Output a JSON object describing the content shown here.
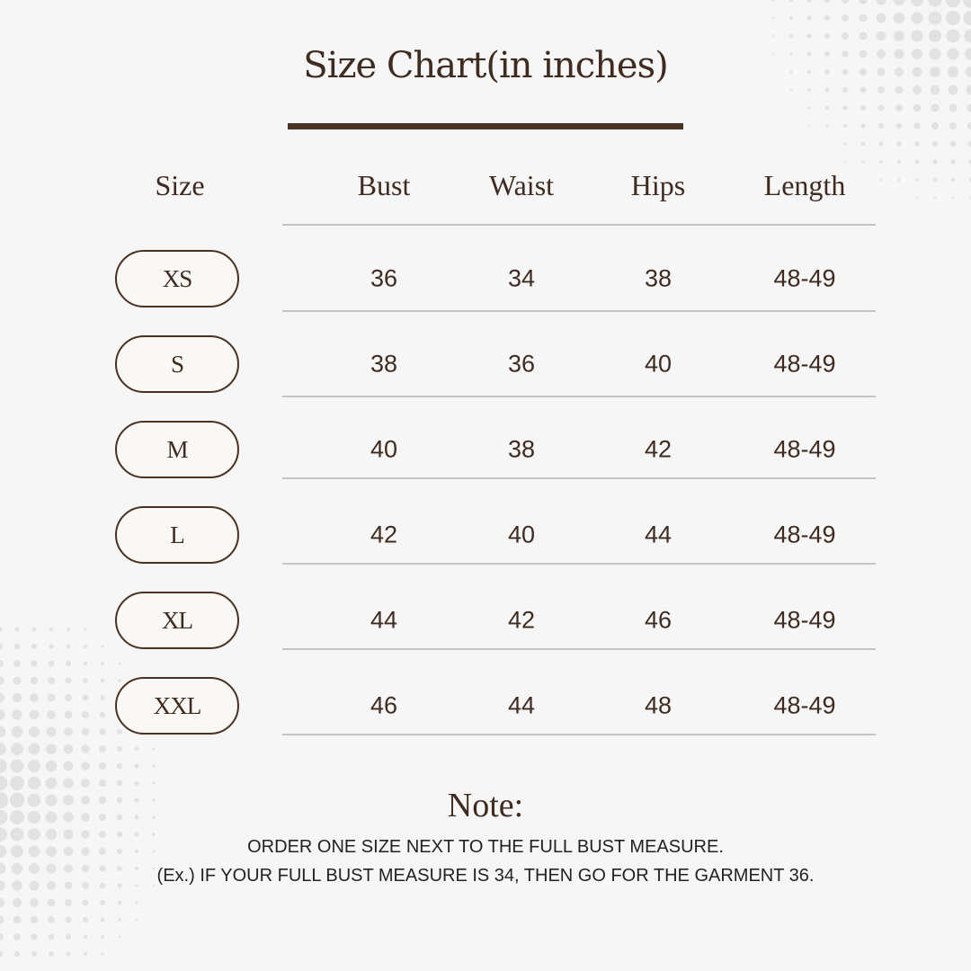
{
  "title": "Size Chart(in inches)",
  "headers": [
    "Size",
    "Bust",
    "Waist",
    "Hips",
    "Length"
  ],
  "rows": [
    {
      "size": "XS",
      "bust": "36",
      "waist": "34",
      "hips": "38",
      "length": "48-49"
    },
    {
      "size": "S",
      "bust": "38",
      "waist": "36",
      "hips": "40",
      "length": "48-49"
    },
    {
      "size": "M",
      "bust": "40",
      "waist": "38",
      "hips": "42",
      "length": "48-49"
    },
    {
      "size": "L",
      "bust": "42",
      "waist": "40",
      "hips": "44",
      "length": "48-49"
    },
    {
      "size": "XL",
      "bust": "44",
      "waist": "42",
      "hips": "46",
      "length": "48-49"
    },
    {
      "size": "XXL",
      "bust": "46",
      "waist": "44",
      "hips": "48",
      "length": "48-49"
    }
  ],
  "note": {
    "title": "Note:",
    "lines": [
      "ORDER ONE SIZE NEXT TO THE FULL BUST MEASURE.",
      "(Ex.) IF YOUR FULL BUST MEASURE IS 34, THEN GO FOR THE GARMENT 36."
    ]
  },
  "colors": {
    "text": "#3f2b20",
    "accent": "#4a3122",
    "background": "#f6f6f6",
    "rule": "#c4c4c4"
  }
}
